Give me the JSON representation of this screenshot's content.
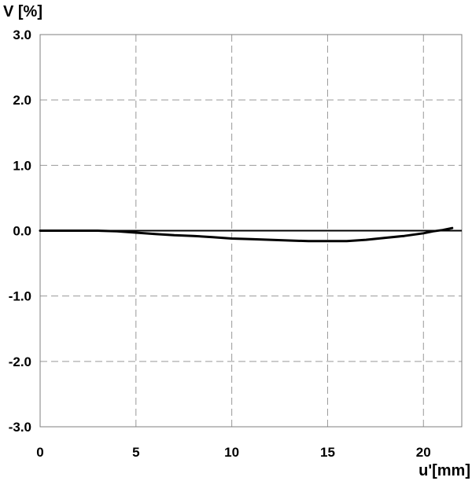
{
  "chart_data": {
    "type": "line",
    "title": "",
    "xlabel": "u'[mm]",
    "ylabel": "V [%]",
    "xlim": [
      0,
      22
    ],
    "ylim": [
      -3.0,
      3.0
    ],
    "x_ticks": [
      0,
      5,
      10,
      15,
      20
    ],
    "x_tick_labels": [
      "0",
      "5",
      "10",
      "15",
      "20"
    ],
    "y_ticks": [
      3.0,
      2.0,
      1.0,
      0.0,
      -1.0,
      -2.0,
      -3.0
    ],
    "y_tick_labels": [
      "3.0",
      "2.0",
      "1.0",
      "0.0",
      "-1.0",
      "-2.0",
      "-3.0"
    ],
    "grid": true,
    "grid_style": "dashed",
    "reference_line_y": 0.0,
    "series": [
      {
        "x": [
          0,
          1,
          2,
          3,
          4,
          5,
          6,
          7,
          8,
          9,
          10,
          11,
          12,
          13,
          14,
          15,
          16,
          17,
          18,
          19,
          20,
          20.5,
          21,
          21.5
        ],
        "y": [
          0.0,
          0.0,
          0.0,
          0.0,
          -0.01,
          -0.03,
          -0.05,
          -0.07,
          -0.08,
          -0.1,
          -0.12,
          -0.13,
          -0.14,
          -0.15,
          -0.16,
          -0.16,
          -0.16,
          -0.14,
          -0.11,
          -0.08,
          -0.04,
          -0.01,
          0.01,
          0.04
        ]
      }
    ],
    "colors": {
      "line": "#000000",
      "grid": "#999999",
      "frame": "#7f7f7f"
    }
  }
}
